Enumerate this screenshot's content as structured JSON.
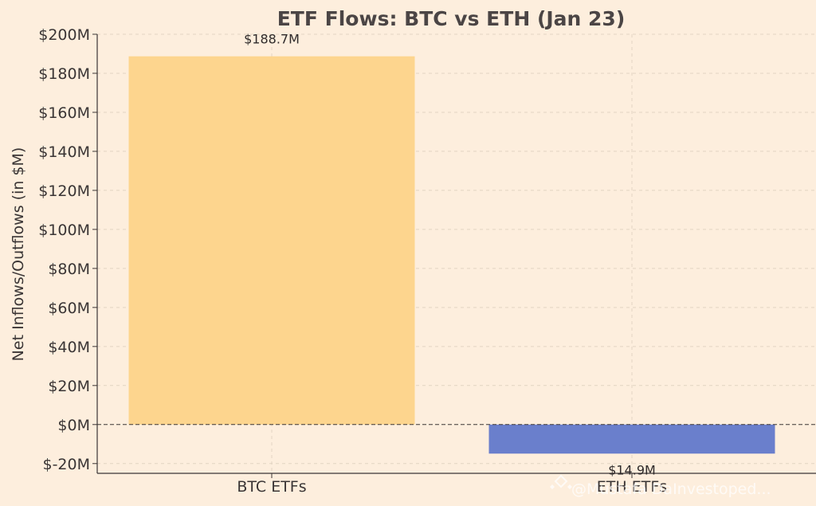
{
  "chart_data": {
    "type": "bar",
    "title": "ETF Flows: BTC vs ETH (Jan 23)",
    "xlabel": "",
    "ylabel": "Net Inflows/Outflows (in $M)",
    "categories": [
      "BTC ETFs",
      "ETH ETFs"
    ],
    "values": [
      188.7,
      -14.9
    ],
    "data_labels": [
      "$188.7M",
      "$14.9M"
    ],
    "colors": [
      "#fdd58e",
      "#6a7fcc"
    ],
    "ylim": [
      -25,
      200
    ],
    "yticks": [
      -20,
      0,
      20,
      40,
      60,
      80,
      100,
      120,
      140,
      160,
      180,
      200
    ],
    "ytick_labels": [
      "$-20M",
      "$0M",
      "$20M",
      "$40M",
      "$60M",
      "$80M",
      "$100M",
      "$120M",
      "$140M",
      "$160M",
      "$180M",
      "$200M"
    ],
    "grid": true,
    "zero_line": "dashed"
  },
  "watermark": {
    "text": "@Mustafa DaInvestoped..."
  }
}
